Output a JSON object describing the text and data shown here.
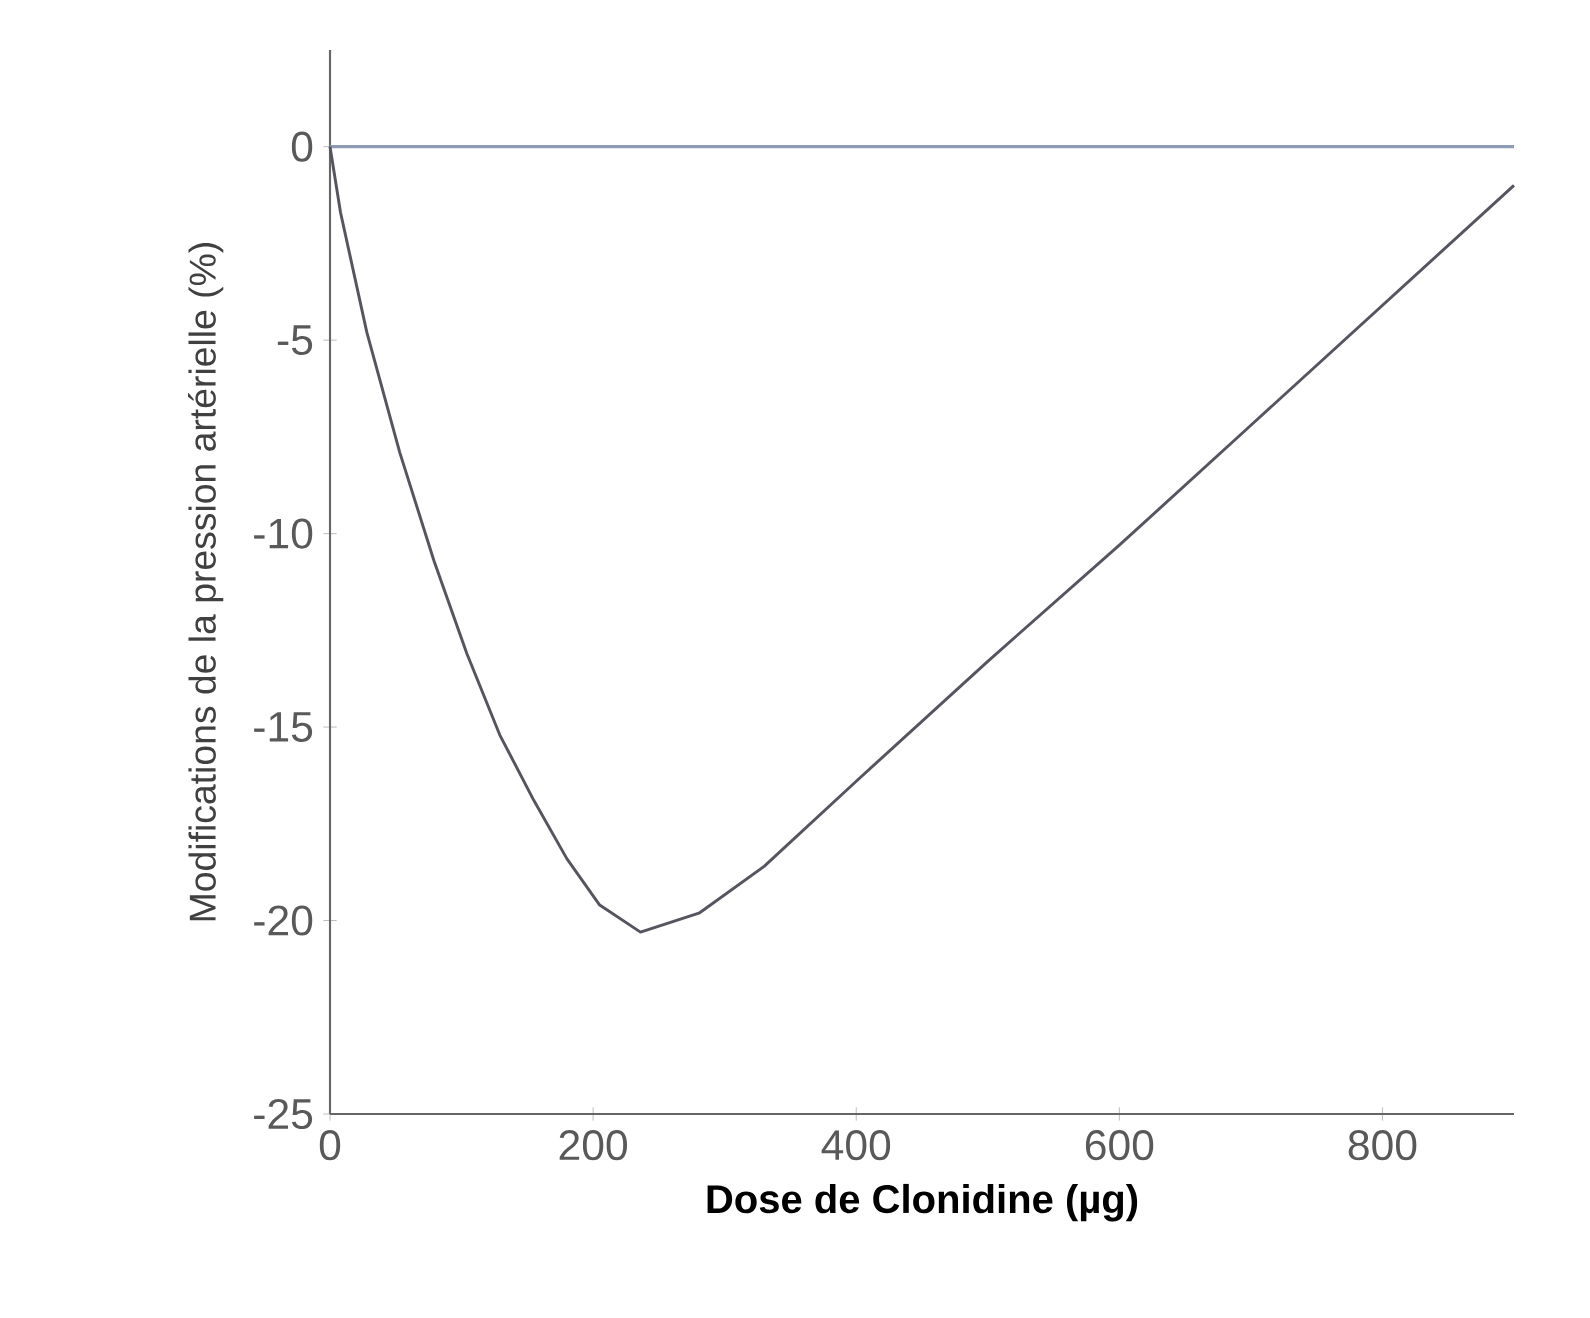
{
  "chart_data": {
    "type": "line",
    "xlabel": "**Dose de Clonidine (µg)**",
    "ylabel": "Modifications de la pression artérielle (%)",
    "x": [
      0,
      8,
      28,
      53,
      79,
      104,
      129,
      155,
      180,
      205,
      236,
      281,
      330,
      400,
      500,
      600,
      700,
      800,
      900
    ],
    "series": [
      {
        "color": "#555560",
        "values": [
          0,
          -1.7,
          -4.8,
          -7.9,
          -10.7,
          -13.1,
          -15.2,
          -16.9,
          -18.4,
          -19.6,
          -20.3,
          -19.8,
          -18.6,
          -16.4,
          -13.3,
          -10.3,
          -7.2,
          -4.1,
          -1
        ]
      }
    ],
    "xlim": [
      0,
      900
    ],
    "ylim": [
      -25,
      2.5
    ],
    "xticks": [
      0,
      200,
      400,
      600,
      800
    ],
    "yticks": [
      -25,
      -20,
      -15,
      -10,
      -5,
      0
    ],
    "ref_lines": [
      {
        "axis": "y",
        "value": 0,
        "color": "#8e9bb3"
      }
    ],
    "grid": false,
    "marker": "none",
    "line_style": "solid"
  }
}
